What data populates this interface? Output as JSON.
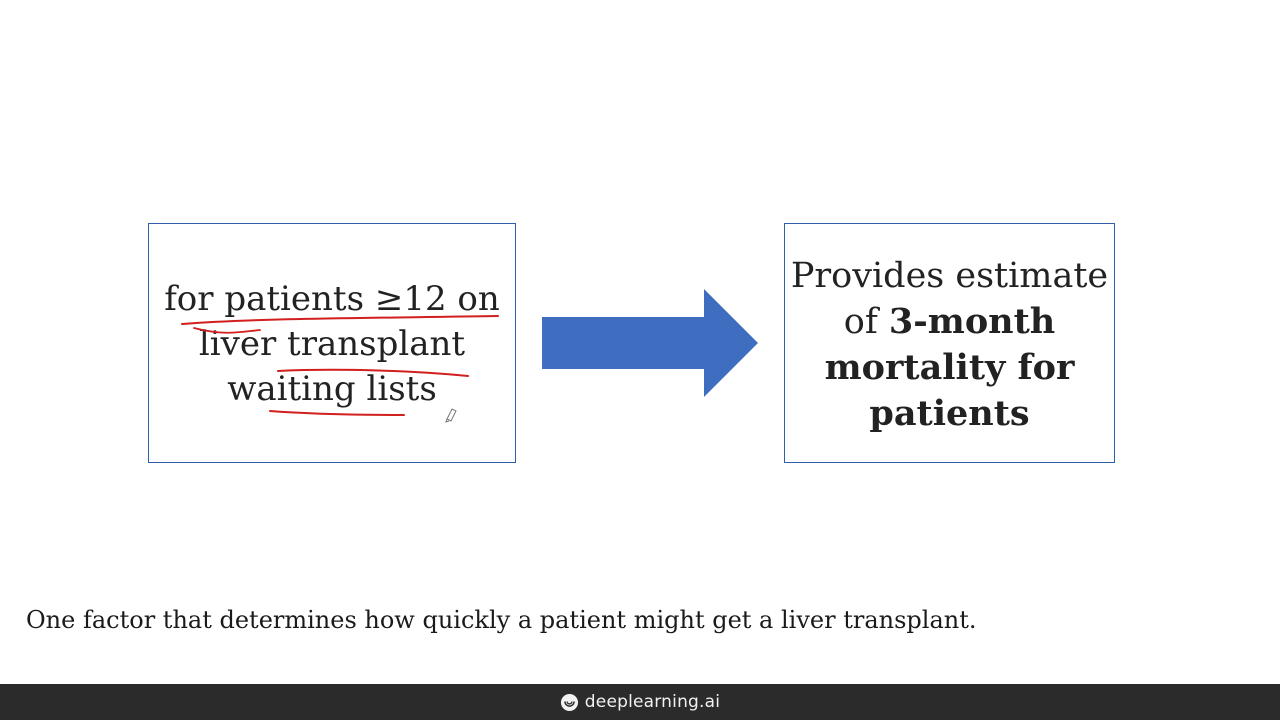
{
  "slide": {
    "left_box": {
      "lines": [
        "for patients ≥12 on",
        "liver transplant",
        "waiting lists"
      ]
    },
    "right_box": {
      "line1": "Provides estimate",
      "line2_prefix": "of ",
      "line2_bold": "3-month",
      "line3": "mortality for",
      "line4": "patients"
    },
    "caption": "One factor that determines how quickly a patient might get a liver transplant."
  },
  "footer": {
    "brand": "deeplearning.ai",
    "brand_icon": "deeplearning-logo-icon"
  },
  "colors": {
    "box_border": "#2f5fa8",
    "arrow": "#3f6dbf",
    "annotation_pen": "#d21f1f",
    "footer_bg": "#2b2b2b"
  }
}
